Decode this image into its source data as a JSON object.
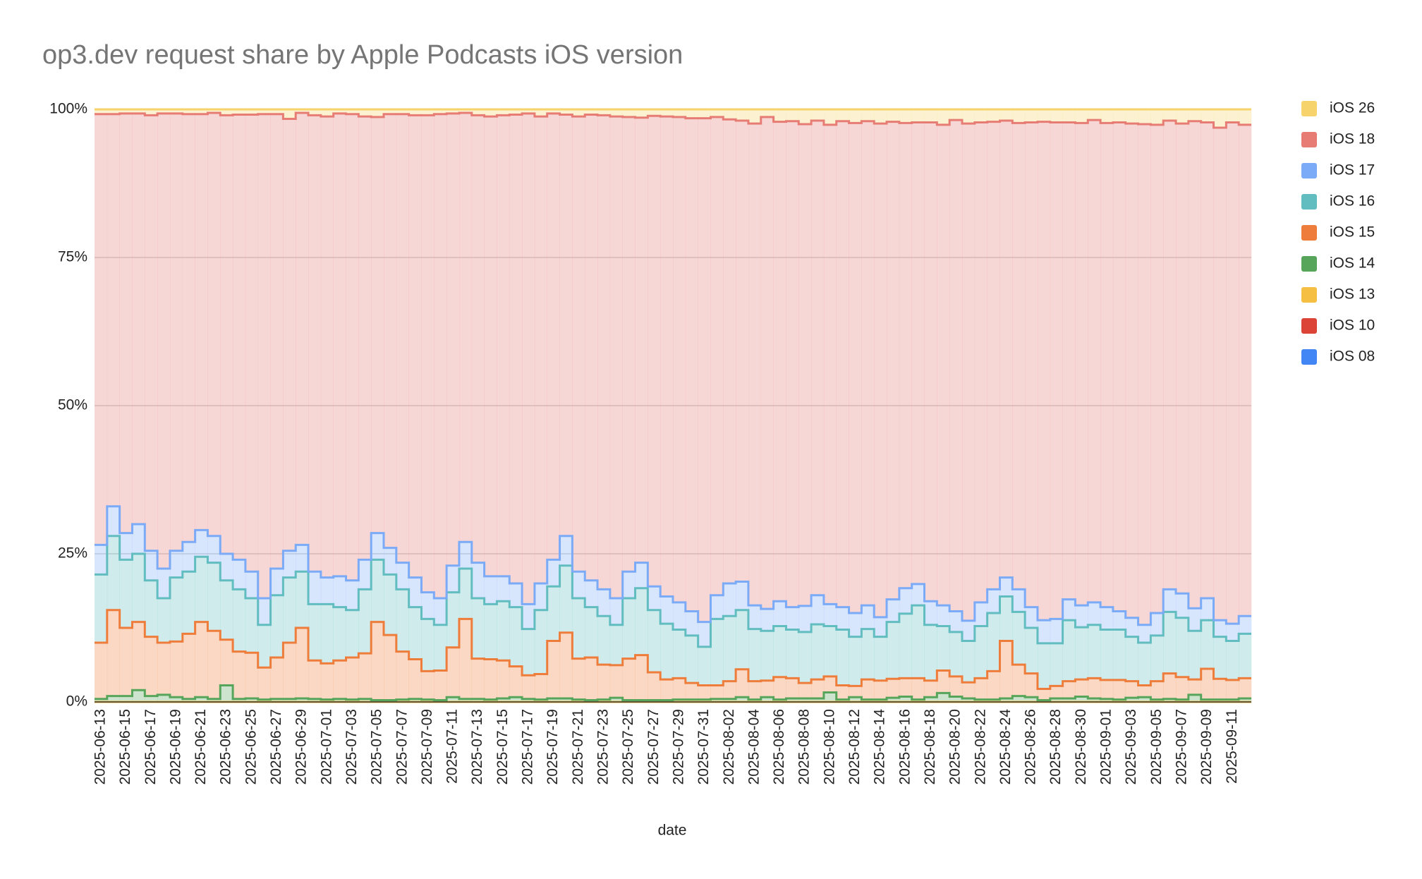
{
  "chart_data": {
    "type": "stepped-area",
    "title": "op3.dev request share by Apple Podcasts iOS version",
    "x_label": "date",
    "categories": [
      "2025-06-13",
      null,
      "2025-06-15",
      null,
      "2025-06-17",
      null,
      "2025-06-19",
      null,
      "2025-06-21",
      null,
      "2025-06-23",
      null,
      "2025-06-25",
      null,
      "2025-06-27",
      null,
      "2025-06-29",
      null,
      "2025-07-01",
      null,
      "2025-07-03",
      null,
      "2025-07-05",
      null,
      "2025-07-07",
      null,
      "2025-07-09",
      null,
      "2025-07-11",
      null,
      "2025-07-13",
      null,
      "2025-07-15",
      null,
      "2025-07-17",
      null,
      "2025-07-19",
      null,
      "2025-07-21",
      null,
      "2025-07-23",
      null,
      "2025-07-25",
      null,
      "2025-07-27",
      null,
      "2025-07-29",
      null,
      "2025-07-31",
      null,
      "2025-08-02",
      null,
      "2025-08-04",
      null,
      "2025-08-06",
      null,
      "2025-08-08",
      null,
      "2025-08-10",
      null,
      "2025-08-12",
      null,
      "2025-08-14",
      null,
      "2025-08-16",
      null,
      "2025-08-18",
      null,
      "2025-08-20",
      null,
      "2025-08-22",
      null,
      "2025-08-24",
      null,
      "2025-08-26",
      null,
      "2025-08-28",
      null,
      "2025-08-30",
      null,
      "2025-09-01",
      null,
      "2025-09-03",
      null,
      "2025-09-05",
      null,
      "2025-09-07",
      null,
      "2025-09-09",
      null,
      "2025-09-11",
      null
    ],
    "series": [
      {
        "name": "iOS 26",
        "color": "#f6d36b",
        "values": [
          0.8,
          0.8,
          0.7,
          0.7,
          1.0,
          0.7,
          0.7,
          0.8,
          0.8,
          0.6,
          1.0,
          0.9,
          0.9,
          0.8,
          0.8,
          1.6,
          0.6,
          1.0,
          1.2,
          0.7,
          0.8,
          1.2,
          1.3,
          0.8,
          0.8,
          1.0,
          1.0,
          0.8,
          0.7,
          0.6,
          1.0,
          1.2,
          1.0,
          0.9,
          0.7,
          1.2,
          0.7,
          0.9,
          1.2,
          0.9,
          1.0,
          1.2,
          1.3,
          1.4,
          1.1,
          1.2,
          1.3,
          1.5,
          1.5,
          1.3,
          1.7,
          1.9,
          2.4,
          1.3,
          2.1,
          2.0,
          2.5,
          1.9,
          2.6,
          2.0,
          2.3,
          2.0,
          2.4,
          2.1,
          2.3,
          2.2,
          2.2,
          2.6,
          1.8,
          2.4,
          2.2,
          2.1,
          1.9,
          2.3,
          2.2,
          2.1,
          2.2,
          2.2,
          2.3,
          1.8,
          2.3,
          2.2,
          2.4,
          2.5,
          2.6,
          1.9,
          2.4,
          2.0,
          2.2,
          3.1,
          2.2,
          2.6
        ]
      },
      {
        "name": "iOS 18",
        "color": "#e67c73",
        "values": [
          72.7,
          66.2,
          70.8,
          69.3,
          73.5,
          76.8,
          73.8,
          72.2,
          70.2,
          71.4,
          74,
          75.1,
          77.1,
          81.7,
          76.7,
          72.9,
          72.9,
          77,
          77.8,
          78.1,
          78.7,
          74.8,
          70.2,
          73.2,
          75.7,
          78,
          80.5,
          81.7,
          76.3,
          72.4,
          75.5,
          77.6,
          77.8,
          79.1,
          82.8,
          78.8,
          75.3,
          71.1,
          76.8,
          78.6,
          80,
          81.3,
          76.7,
          75.1,
          79.4,
          81,
          81.9,
          83.2,
          85,
          80.7,
          78.3,
          77.8,
          81.3,
          83,
          80.9,
          82,
          81.3,
          80.1,
          80.9,
          82,
          82.7,
          81.7,
          83.3,
          80.6,
          78.5,
          77.9,
          80.8,
          81.1,
          82.9,
          83.9,
          81,
          78.9,
          77.1,
          78.7,
          81.8,
          84.1,
          83.8,
          80.5,
          81.4,
          81.4,
          81.7,
          82.5,
          83.4,
          84.5,
          82.4,
          79.1,
          79.3,
          82.2,
          80.3,
          83.1,
          84.6,
          82.9
        ]
      },
      {
        "name": "iOS 17",
        "color": "#7baaf7",
        "values": [
          5,
          5,
          4.5,
          5,
          5,
          5,
          4.5,
          5,
          4.5,
          4.5,
          4.5,
          5,
          4.5,
          4.5,
          4.5,
          4.5,
          4.5,
          5.5,
          4.5,
          5.2,
          5,
          5,
          4.5,
          4.5,
          4.5,
          5,
          4.5,
          4.5,
          4.5,
          4.5,
          6,
          4.7,
          4.2,
          4,
          4.2,
          4.5,
          4.5,
          5,
          4.5,
          4.5,
          4.5,
          4.5,
          4.5,
          4.3,
          4,
          4.6,
          4.6,
          4.1,
          4.2,
          4,
          5.5,
          4.8,
          4,
          3.7,
          4.2,
          3.8,
          4.4,
          4.9,
          3.7,
          3.8,
          4,
          4,
          3.3,
          3.8,
          4.3,
          3.6,
          4,
          3.5,
          3.5,
          3.4,
          4,
          4,
          3.2,
          3.8,
          3.5,
          3.9,
          4.1,
          3.5,
          3.7,
          3.8,
          3.8,
          3.1,
          3.2,
          3,
          3.8,
          3.8,
          4.1,
          3.8,
          3.7,
          2.8,
          2.9,
          3
        ]
      },
      {
        "name": "iOS 16",
        "color": "#61bdbf",
        "values": [
          11.5,
          12.5,
          11.5,
          11.5,
          9.5,
          7.5,
          10.8,
          10.5,
          11,
          11.5,
          10,
          10.5,
          9.2,
          7.2,
          10.5,
          11,
          9.5,
          9.5,
          10,
          9,
          8,
          10.8,
          10.5,
          10.2,
          10.5,
          8.8,
          8.8,
          7.7,
          9.3,
          8.5,
          10.2,
          9.3,
          10,
          10,
          7.8,
          10.8,
          9.2,
          11.3,
          10.2,
          8.5,
          8.2,
          6.8,
          10.2,
          11.3,
          10.5,
          9.4,
          8.2,
          8,
          6.5,
          11.2,
          11,
          10,
          8.8,
          8.4,
          8.6,
          8.2,
          8.6,
          9.3,
          8.5,
          9.4,
          8.3,
          8.5,
          7.4,
          9.6,
          10.9,
          12.3,
          9.4,
          7.5,
          7.5,
          7,
          8.8,
          9.8,
          7.5,
          8.9,
          7.7,
          7.7,
          7.2,
          10.3,
          8.8,
          9,
          8.5,
          8.5,
          7.5,
          7.2,
          7.7,
          10.4,
          10,
          8.2,
          8.2,
          7.1,
          6.6,
          7.5
        ]
      },
      {
        "name": "iOS 15",
        "color": "#ee7d3b",
        "values": [
          9.5,
          14.5,
          11.5,
          11.5,
          10,
          8.8,
          9.4,
          11,
          12.7,
          11.5,
          7.7,
          8,
          7.7,
          5.4,
          7,
          9.5,
          11.9,
          6.5,
          6.1,
          6.5,
          7.1,
          7.7,
          13.2,
          11,
          8.1,
          6.7,
          4.8,
          5,
          8.4,
          13.5,
          6.8,
          6.8,
          6.4,
          5.2,
          4,
          4.3,
          9.7,
          11.1,
          6.9,
          7.2,
          5.9,
          5.5,
          7,
          7.6,
          4.7,
          3.5,
          3.6,
          2.8,
          2.4,
          2.3,
          3,
          4.7,
          3.1,
          2.8,
          3.8,
          3.4,
          2.6,
          3.2,
          2.7,
          2.4,
          1.9,
          3.4,
          3.2,
          3.2,
          3.1,
          3.6,
          2.8,
          3.8,
          3.4,
          2.7,
          3.6,
          4.8,
          9.7,
          5.3,
          4,
          1.9,
          2.1,
          2.9,
          2.9,
          3.4,
          3.2,
          3.3,
          2.8,
          2,
          3.1,
          4.3,
          3.8,
          2.6,
          5.2,
          3.5,
          3.3,
          3.4
        ]
      },
      {
        "name": "iOS 14",
        "color": "#57a55a",
        "values": [
          0.5,
          1,
          1,
          2,
          1,
          1.2,
          0.8,
          0.5,
          0.8,
          0.5,
          2.8,
          0.5,
          0.6,
          0.4,
          0.5,
          0.5,
          0.6,
          0.5,
          0.4,
          0.5,
          0.4,
          0.5,
          0.3,
          0.3,
          0.4,
          0.5,
          0.4,
          0.3,
          0.8,
          0.5,
          0.5,
          0.4,
          0.6,
          0.8,
          0.5,
          0.4,
          0.6,
          0.6,
          0.4,
          0.3,
          0.4,
          0.7,
          0.3,
          0.3,
          0.3,
          0.3,
          0.4,
          0.4,
          0.4,
          0.5,
          0.5,
          0.8,
          0.4,
          0.8,
          0.4,
          0.6,
          0.6,
          0.6,
          1.6,
          0.4,
          0.8,
          0.4,
          0.4,
          0.7,
          0.9,
          0.4,
          0.8,
          1.5,
          0.9,
          0.6,
          0.4,
          0.4,
          0.6,
          1,
          0.8,
          0.3,
          0.6,
          0.6,
          0.9,
          0.6,
          0.5,
          0.4,
          0.7,
          0.8,
          0.4,
          0.5,
          0.4,
          1.2,
          0.4,
          0.4,
          0.4,
          0.6
        ]
      },
      {
        "name": "iOS 13",
        "color": "#f4bf42",
        "values": [
          0,
          0,
          0,
          0,
          0,
          0,
          0,
          0,
          0,
          0,
          0,
          0,
          0,
          0,
          0,
          0,
          0,
          0,
          0,
          0,
          0,
          0,
          0,
          0,
          0,
          0,
          0,
          0,
          0,
          0,
          0,
          0,
          0,
          0,
          0,
          0,
          0,
          0,
          0,
          0,
          0,
          0,
          0,
          0,
          0,
          0,
          0,
          0,
          0,
          0,
          0,
          0,
          0,
          0,
          0,
          0,
          0,
          0,
          0,
          0,
          0,
          0,
          0,
          0,
          0,
          0,
          0,
          0,
          0,
          0,
          0,
          0,
          0,
          0,
          0,
          0,
          0,
          0,
          0,
          0,
          0,
          0,
          0,
          0,
          0,
          0,
          0,
          0,
          0,
          0,
          0,
          0
        ]
      },
      {
        "name": "iOS 10",
        "color": "#db4437",
        "values": [
          0,
          0,
          0,
          0,
          0,
          0,
          0,
          0,
          0,
          0,
          0,
          0,
          0,
          0,
          0,
          0,
          0,
          0,
          0,
          0,
          0,
          0,
          0,
          0,
          0,
          0,
          0,
          0,
          0,
          0,
          0,
          0,
          0,
          0,
          0,
          0,
          0,
          0,
          0,
          0,
          0,
          0,
          0,
          0,
          0,
          0,
          0,
          0,
          0,
          0,
          0,
          0,
          0,
          0,
          0,
          0,
          0,
          0,
          0,
          0,
          0,
          0,
          0,
          0,
          0,
          0,
          0,
          0,
          0,
          0,
          0,
          0,
          0,
          0,
          0,
          0,
          0,
          0,
          0,
          0,
          0,
          0,
          0,
          0,
          0,
          0,
          0,
          0,
          0,
          0,
          0,
          0
        ]
      },
      {
        "name": "iOS 08",
        "color": "#4285f4",
        "values": [
          0,
          0,
          0,
          0,
          0,
          0,
          0,
          0,
          0,
          0,
          0,
          0,
          0,
          0,
          0,
          0,
          0,
          0,
          0,
          0,
          0,
          0,
          0,
          0,
          0,
          0,
          0,
          0,
          0,
          0,
          0,
          0,
          0,
          0,
          0,
          0,
          0,
          0,
          0,
          0,
          0,
          0,
          0,
          0,
          0,
          0,
          0,
          0,
          0,
          0,
          0,
          0,
          0,
          0,
          0,
          0,
          0,
          0,
          0,
          0,
          0,
          0,
          0,
          0,
          0,
          0,
          0,
          0,
          0,
          0,
          0,
          0,
          0,
          0,
          0,
          0,
          0,
          0,
          0,
          0,
          0,
          0,
          0,
          0,
          0,
          0,
          0,
          0,
          0,
          0,
          0,
          0
        ]
      }
    ],
    "ylim": [
      0,
      100
    ],
    "yticks": [
      {
        "value": 0,
        "label": "0%"
      },
      {
        "value": 25,
        "label": "25%"
      },
      {
        "value": 50,
        "label": "50%"
      },
      {
        "value": 75,
        "label": "75%"
      },
      {
        "value": 100,
        "label": "100%"
      }
    ],
    "grid": true,
    "stacked": true,
    "legend": "right"
  }
}
